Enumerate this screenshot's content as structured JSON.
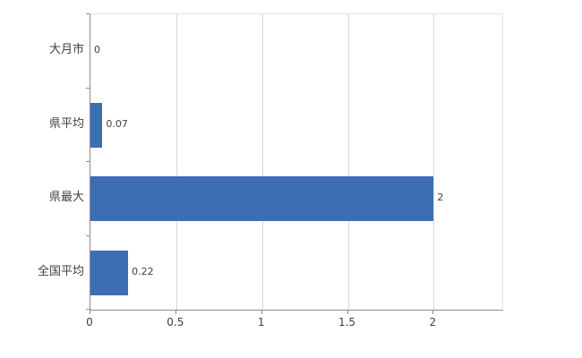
{
  "chart_data": {
    "type": "bar",
    "orientation": "horizontal",
    "title": "",
    "categories": [
      "大月市",
      "県平均",
      "県最大",
      "全国平均"
    ],
    "values": [
      0,
      0.07,
      2,
      0.22
    ],
    "value_labels": [
      "0",
      "0.07",
      "2",
      "0.22"
    ],
    "xlim": [
      0,
      2.4
    ],
    "xticks": [
      0,
      0.5,
      1,
      1.5,
      2
    ],
    "xtick_labels": [
      "0",
      "0.5",
      "1",
      "1.5",
      "2"
    ],
    "grid": true,
    "legend": "none",
    "colors": {
      "bar": "#3d6eb4",
      "gridline": "#d9d9d9",
      "axis": "#8c8c8c",
      "text": "#404040"
    }
  }
}
